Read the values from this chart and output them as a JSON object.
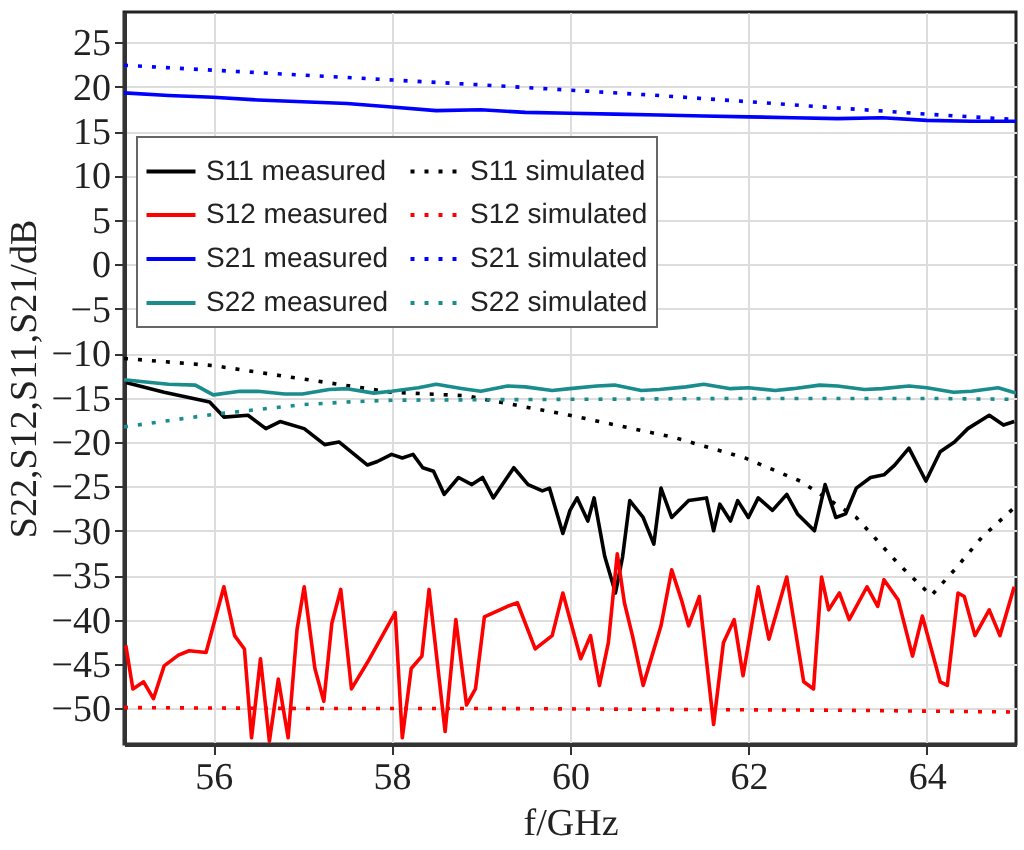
{
  "chart_data": {
    "type": "line",
    "xlabel": "f/GHz",
    "ylabel": "S22,S12,S11,S21/dB",
    "xlim": [
      55,
      65
    ],
    "xticks": [
      56,
      58,
      60,
      62,
      64
    ],
    "ylim": [
      -54,
      28.4
    ],
    "yticks": [
      25,
      20,
      15,
      10,
      5,
      0,
      {
        "value": -5,
        "label": "−5"
      },
      {
        "value": -10,
        "label": "−10"
      },
      {
        "value": -15,
        "label": "−15"
      },
      {
        "value": -20,
        "label": "−20"
      },
      {
        "value": -25,
        "label": "−25"
      },
      {
        "value": -30,
        "label": "−30"
      },
      {
        "value": -35,
        "label": "−35"
      },
      {
        "value": -40,
        "label": "−40"
      },
      {
        "value": -45,
        "label": "−45"
      },
      {
        "value": -50,
        "label": "−50"
      }
    ],
    "grid": true,
    "legend": "top left",
    "marker": "none",
    "series": [
      {
        "name": "S11 measured",
        "color": "#000000",
        "line_style": "solid",
        "x": [
          55.02,
          55.45,
          55.96,
          56.12,
          56.39,
          56.59,
          56.75,
          57.02,
          57.25,
          57.41,
          57.73,
          57.84,
          58.0,
          58.12,
          58.24,
          58.35,
          58.47,
          58.59,
          58.75,
          58.9,
          59.02,
          59.14,
          59.37,
          59.53,
          59.69,
          59.77,
          59.92,
          60.0,
          60.08,
          60.2,
          60.27,
          60.39,
          60.51,
          60.59,
          60.67,
          60.82,
          60.94,
          61.02,
          61.14,
          61.33,
          61.53,
          61.61,
          61.68,
          61.8,
          61.88,
          62.0,
          62.11,
          62.27,
          62.43,
          62.55,
          62.74,
          62.86,
          62.98,
          63.09,
          63.21,
          63.37,
          63.52,
          63.64,
          63.8,
          63.99,
          64.15,
          64.31,
          64.46,
          64.7,
          64.86,
          64.98
        ],
        "values": [
          -13.3,
          -14.4,
          -15.5,
          -17.2,
          -17.0,
          -18.5,
          -17.7,
          -18.5,
          -20.3,
          -20.0,
          -22.6,
          -22.2,
          -21.4,
          -21.8,
          -21.4,
          -22.9,
          -23.3,
          -25.9,
          -24.0,
          -24.8,
          -24.0,
          -26.3,
          -22.9,
          -24.8,
          -25.5,
          -25.2,
          -30.3,
          -27.7,
          -26.3,
          -28.9,
          -26.3,
          -32.9,
          -37.0,
          -32.9,
          -26.6,
          -28.5,
          -31.5,
          -25.2,
          -28.5,
          -26.6,
          -26.3,
          -30.0,
          -27.0,
          -28.9,
          -26.6,
          -28.5,
          -26.3,
          -27.7,
          -25.9,
          -28.1,
          -30.0,
          -24.8,
          -28.5,
          -28.1,
          -25.2,
          -24.0,
          -23.7,
          -22.6,
          -20.7,
          -24.4,
          -21.1,
          -20.0,
          -18.5,
          -17.0,
          -18.1,
          -17.7
        ]
      },
      {
        "name": "S11 simulated",
        "color": "#000000",
        "line_style": "dotted",
        "x": [
          55,
          56,
          57,
          58,
          58.83,
          60,
          61.17,
          61.96,
          62.58,
          63.21,
          63.68,
          64.05,
          64.31,
          64.62,
          64.98
        ],
        "values": [
          -10.6,
          -11.4,
          -12.9,
          -14.4,
          -14.8,
          -17.0,
          -19.5,
          -21.8,
          -24.4,
          -28.5,
          -33.7,
          -37.3,
          -34.4,
          -30.7,
          -27.4
        ]
      },
      {
        "name": "S12 measured",
        "color": "#ff0000",
        "line_style": "solid",
        "x": [
          55.02,
          55.1,
          55.22,
          55.33,
          55.45,
          55.61,
          55.73,
          55.8,
          55.92,
          56.02,
          56.12,
          56.24,
          56.35,
          56.43,
          56.53,
          56.63,
          56.73,
          56.84,
          56.94,
          57.02,
          57.14,
          57.24,
          57.33,
          57.43,
          57.55,
          57.73,
          58.04,
          58.12,
          58.22,
          58.34,
          58.42,
          58.6,
          58.72,
          58.84,
          58.94,
          59.04,
          59.3,
          59.41,
          59.61,
          59.8,
          59.92,
          60.0,
          60.12,
          60.23,
          60.33,
          60.43,
          60.53,
          60.61,
          60.7,
          60.82,
          61.02,
          61.14,
          61.25,
          61.33,
          61.45,
          61.61,
          61.72,
          61.84,
          61.94,
          62.04,
          62.11,
          62.23,
          62.43,
          62.62,
          62.73,
          62.82,
          62.9,
          63.02,
          63.13,
          63.33,
          63.45,
          63.52,
          63.68,
          63.84,
          63.95,
          64.15,
          64.23,
          64.35,
          64.42,
          64.54,
          64.7,
          64.82,
          64.98
        ],
        "values": [
          -42.9,
          -47.8,
          -47.0,
          -48.9,
          -45.2,
          -44.0,
          -43.5,
          null,
          -43.7,
          null,
          -36.3,
          -41.8,
          -43.3,
          -53.3,
          -44.4,
          -53.7,
          -46.7,
          -53.3,
          -41.1,
          -36.3,
          -45.5,
          -49.2,
          -40.4,
          -36.6,
          -47.8,
          -44.8,
          -39.2,
          -53.3,
          -45.5,
          -44.1,
          -36.6,
          -52.6,
          -40.0,
          -49.6,
          -47.8,
          -39.7,
          -38.5,
          -38.1,
          -43.3,
          -41.8,
          -37.0,
          null,
          -44.4,
          -41.8,
          -47.4,
          -42.6,
          -32.6,
          -38.1,
          -41.8,
          -47.4,
          -40.7,
          -34.4,
          -37.8,
          -40.7,
          -37.4,
          -51.8,
          -42.6,
          -40.0,
          -46.3,
          -40.4,
          -36.3,
          -42.2,
          -35.2,
          -47.0,
          -47.8,
          -35.2,
          -38.9,
          -37.0,
          -40.0,
          -36.3,
          -38.5,
          -35.5,
          -37.8,
          -44.1,
          -39.6,
          -47.0,
          -47.4,
          -37.0,
          -37.4,
          -41.8,
          -38.9,
          -41.8,
          -36.3
        ]
      },
      {
        "name": "S12 simulated",
        "color": "#ff0000",
        "line_style": "dotted",
        "x": [
          55,
          57,
          59,
          61,
          63,
          65
        ],
        "values": [
          -49.9,
          -50.0,
          -50.0,
          -50.1,
          -50.2,
          -50.4
        ]
      },
      {
        "name": "S21 measured",
        "color": "#0000ff",
        "line_style": "solid",
        "x": [
          55,
          55.5,
          56,
          56.5,
          57,
          57.5,
          58,
          58.5,
          59,
          59.5,
          60,
          60.5,
          61,
          61.5,
          62,
          62.5,
          63,
          63.5,
          64,
          64.5,
          65
        ],
        "values": [
          19.3,
          19.0,
          18.8,
          18.5,
          18.3,
          18.1,
          17.7,
          17.3,
          17.4,
          17.1,
          17.0,
          16.9,
          16.8,
          16.7,
          16.6,
          16.5,
          16.4,
          16.5,
          16.2,
          16.1,
          16.1
        ]
      },
      {
        "name": "S21 simulated",
        "color": "#0000ff",
        "line_style": "dotted",
        "x": [
          55,
          57,
          59,
          61,
          62,
          63,
          64,
          65
        ],
        "values": [
          22.4,
          21.3,
          20.2,
          19.0,
          18.3,
          17.6,
          16.9,
          16.3
        ]
      },
      {
        "name": "S22 measured",
        "color": "#1a8c8c",
        "line_style": "solid",
        "x": [
          55,
          55.3,
          55.5,
          55.8,
          56,
          56.3,
          56.5,
          56.8,
          57,
          57.3,
          57.5,
          57.8,
          58,
          58.3,
          58.5,
          58.8,
          59,
          59.3,
          59.5,
          59.8,
          60,
          60.3,
          60.5,
          60.8,
          61,
          61.3,
          61.5,
          61.8,
          62,
          62.3,
          62.5,
          62.8,
          63,
          63.3,
          63.5,
          63.8,
          64,
          64.3,
          64.5,
          64.8,
          65
        ],
        "values": [
          -13.0,
          -13.3,
          -13.5,
          -13.6,
          -14.7,
          -14.3,
          -14.3,
          -14.6,
          -14.6,
          -14.1,
          -14.0,
          -14.5,
          -14.3,
          -13.9,
          -13.5,
          -14.0,
          -14.3,
          -13.7,
          -13.8,
          -14.2,
          -14.0,
          -13.7,
          -13.6,
          -14.2,
          -14.1,
          -13.8,
          -13.5,
          -14.0,
          -13.9,
          -14.2,
          -14.0,
          -13.6,
          -13.7,
          -14.1,
          -14.0,
          -13.7,
          -13.9,
          -14.4,
          -14.3,
          -13.9,
          -14.5
        ]
      },
      {
        "name": "S22 simulated",
        "color": "#1a8c8c",
        "line_style": "dotted",
        "x": [
          55,
          56,
          57,
          57.5,
          58,
          60,
          62,
          64,
          65
        ],
        "values": [
          -18.3,
          -16.9,
          -15.8,
          -15.5,
          -15.3,
          -15.2,
          -15.1,
          -15.1,
          -15.2
        ]
      }
    ]
  }
}
